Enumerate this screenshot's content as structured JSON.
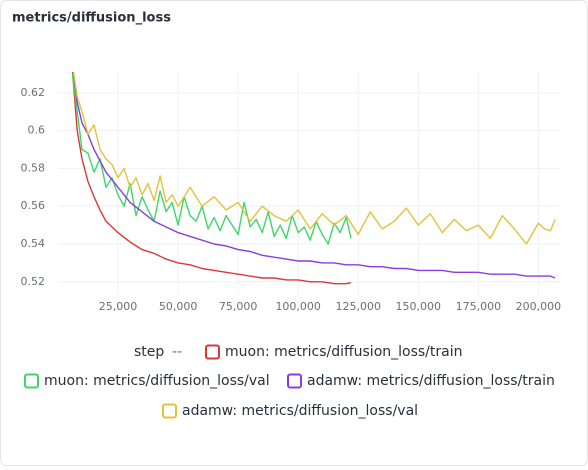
{
  "chart_data": {
    "type": "line",
    "title": "metrics/diffusion_loss",
    "x_label": "step",
    "legend_separator": "--",
    "xlim": [
      0,
      209000
    ],
    "ylim": [
      0.513,
      0.631
    ],
    "grid": true,
    "xticks": [
      {
        "value": 25000,
        "label": "25,000"
      },
      {
        "value": 50000,
        "label": "50,000"
      },
      {
        "value": 75000,
        "label": "75,000"
      },
      {
        "value": 100000,
        "label": "100,000"
      },
      {
        "value": 125000,
        "label": "125,000"
      },
      {
        "value": 150000,
        "label": "150,000"
      },
      {
        "value": 175000,
        "label": "175,000"
      },
      {
        "value": 200000,
        "label": "200,000"
      }
    ],
    "yticks": [
      0.52,
      0.54,
      0.56,
      0.58,
      0.6,
      0.62
    ],
    "series": [
      {
        "name": "muon: metrics/diffusion_loss/train",
        "color": "#d83a3a",
        "x": [
          6000,
          8000,
          10000,
          12500,
          15000,
          17500,
          20000,
          25000,
          30000,
          35000,
          40000,
          45000,
          50000,
          55000,
          60000,
          65000,
          70000,
          75000,
          80000,
          85000,
          90000,
          95000,
          100000,
          105000,
          110000,
          115000,
          120000,
          122000
        ],
        "values": [
          0.632,
          0.6,
          0.585,
          0.573,
          0.565,
          0.558,
          0.552,
          0.546,
          0.541,
          0.537,
          0.535,
          0.532,
          0.53,
          0.529,
          0.527,
          0.526,
          0.525,
          0.524,
          0.523,
          0.522,
          0.522,
          0.521,
          0.521,
          0.52,
          0.52,
          0.519,
          0.519,
          0.5195
        ]
      },
      {
        "name": "muon: metrics/diffusion_loss/val",
        "color": "#3ed66b",
        "x": [
          6000,
          8000,
          10000,
          12500,
          15000,
          17500,
          20000,
          22500,
          25000,
          27500,
          30000,
          32500,
          35000,
          37500,
          40000,
          42500,
          45000,
          47500,
          50000,
          52500,
          55000,
          57500,
          60000,
          62500,
          65000,
          67500,
          70000,
          72500,
          75000,
          77500,
          80000,
          82500,
          85000,
          87500,
          90000,
          92500,
          95000,
          97500,
          100000,
          102500,
          105000,
          107500,
          110000,
          112500,
          115000,
          117500,
          120000,
          122000
        ],
        "values": [
          0.63,
          0.61,
          0.59,
          0.588,
          0.578,
          0.585,
          0.57,
          0.575,
          0.566,
          0.56,
          0.572,
          0.555,
          0.565,
          0.558,
          0.552,
          0.568,
          0.557,
          0.562,
          0.55,
          0.565,
          0.555,
          0.552,
          0.56,
          0.548,
          0.554,
          0.547,
          0.555,
          0.55,
          0.545,
          0.562,
          0.549,
          0.553,
          0.546,
          0.557,
          0.544,
          0.55,
          0.543,
          0.555,
          0.546,
          0.549,
          0.542,
          0.552,
          0.545,
          0.54,
          0.551,
          0.546,
          0.554,
          0.543
        ]
      },
      {
        "name": "adamw: metrics/diffusion_loss/train",
        "color": "#8a3de0",
        "x": [
          6000,
          8000,
          10000,
          12500,
          15000,
          17500,
          20000,
          25000,
          30000,
          35000,
          40000,
          45000,
          50000,
          55000,
          60000,
          65000,
          70000,
          75000,
          80000,
          85000,
          90000,
          95000,
          100000,
          105000,
          110000,
          115000,
          120000,
          125000,
          130000,
          135000,
          140000,
          145000,
          150000,
          155000,
          160000,
          165000,
          170000,
          175000,
          180000,
          185000,
          190000,
          195000,
          200000,
          205000,
          207000
        ],
        "values": [
          0.635,
          0.615,
          0.604,
          0.598,
          0.59,
          0.584,
          0.578,
          0.57,
          0.562,
          0.557,
          0.552,
          0.549,
          0.546,
          0.544,
          0.542,
          0.54,
          0.539,
          0.537,
          0.536,
          0.534,
          0.533,
          0.532,
          0.531,
          0.531,
          0.53,
          0.53,
          0.529,
          0.529,
          0.528,
          0.528,
          0.527,
          0.527,
          0.526,
          0.526,
          0.526,
          0.525,
          0.525,
          0.525,
          0.524,
          0.524,
          0.524,
          0.523,
          0.523,
          0.523,
          0.522
        ]
      },
      {
        "name": "adamw: metrics/diffusion_loss/val",
        "color": "#e0c33a",
        "x": [
          6000,
          8000,
          10000,
          12500,
          15000,
          17500,
          20000,
          22500,
          25000,
          27500,
          30000,
          32500,
          35000,
          37500,
          40000,
          42500,
          45000,
          47500,
          50000,
          55000,
          60000,
          65000,
          70000,
          75000,
          80000,
          85000,
          90000,
          95000,
          100000,
          105000,
          110000,
          115000,
          120000,
          125000,
          130000,
          135000,
          140000,
          145000,
          150000,
          155000,
          160000,
          165000,
          170000,
          175000,
          180000,
          185000,
          190000,
          195000,
          200000,
          202500,
          205000,
          207000
        ],
        "values": [
          0.635,
          0.618,
          0.61,
          0.598,
          0.603,
          0.59,
          0.585,
          0.582,
          0.575,
          0.58,
          0.57,
          0.575,
          0.566,
          0.572,
          0.563,
          0.576,
          0.562,
          0.566,
          0.56,
          0.57,
          0.56,
          0.565,
          0.558,
          0.562,
          0.552,
          0.56,
          0.555,
          0.552,
          0.558,
          0.548,
          0.556,
          0.55,
          0.555,
          0.545,
          0.557,
          0.548,
          0.552,
          0.559,
          0.55,
          0.556,
          0.546,
          0.553,
          0.547,
          0.55,
          0.543,
          0.555,
          0.548,
          0.54,
          0.551,
          0.548,
          0.547,
          0.553
        ]
      }
    ]
  }
}
